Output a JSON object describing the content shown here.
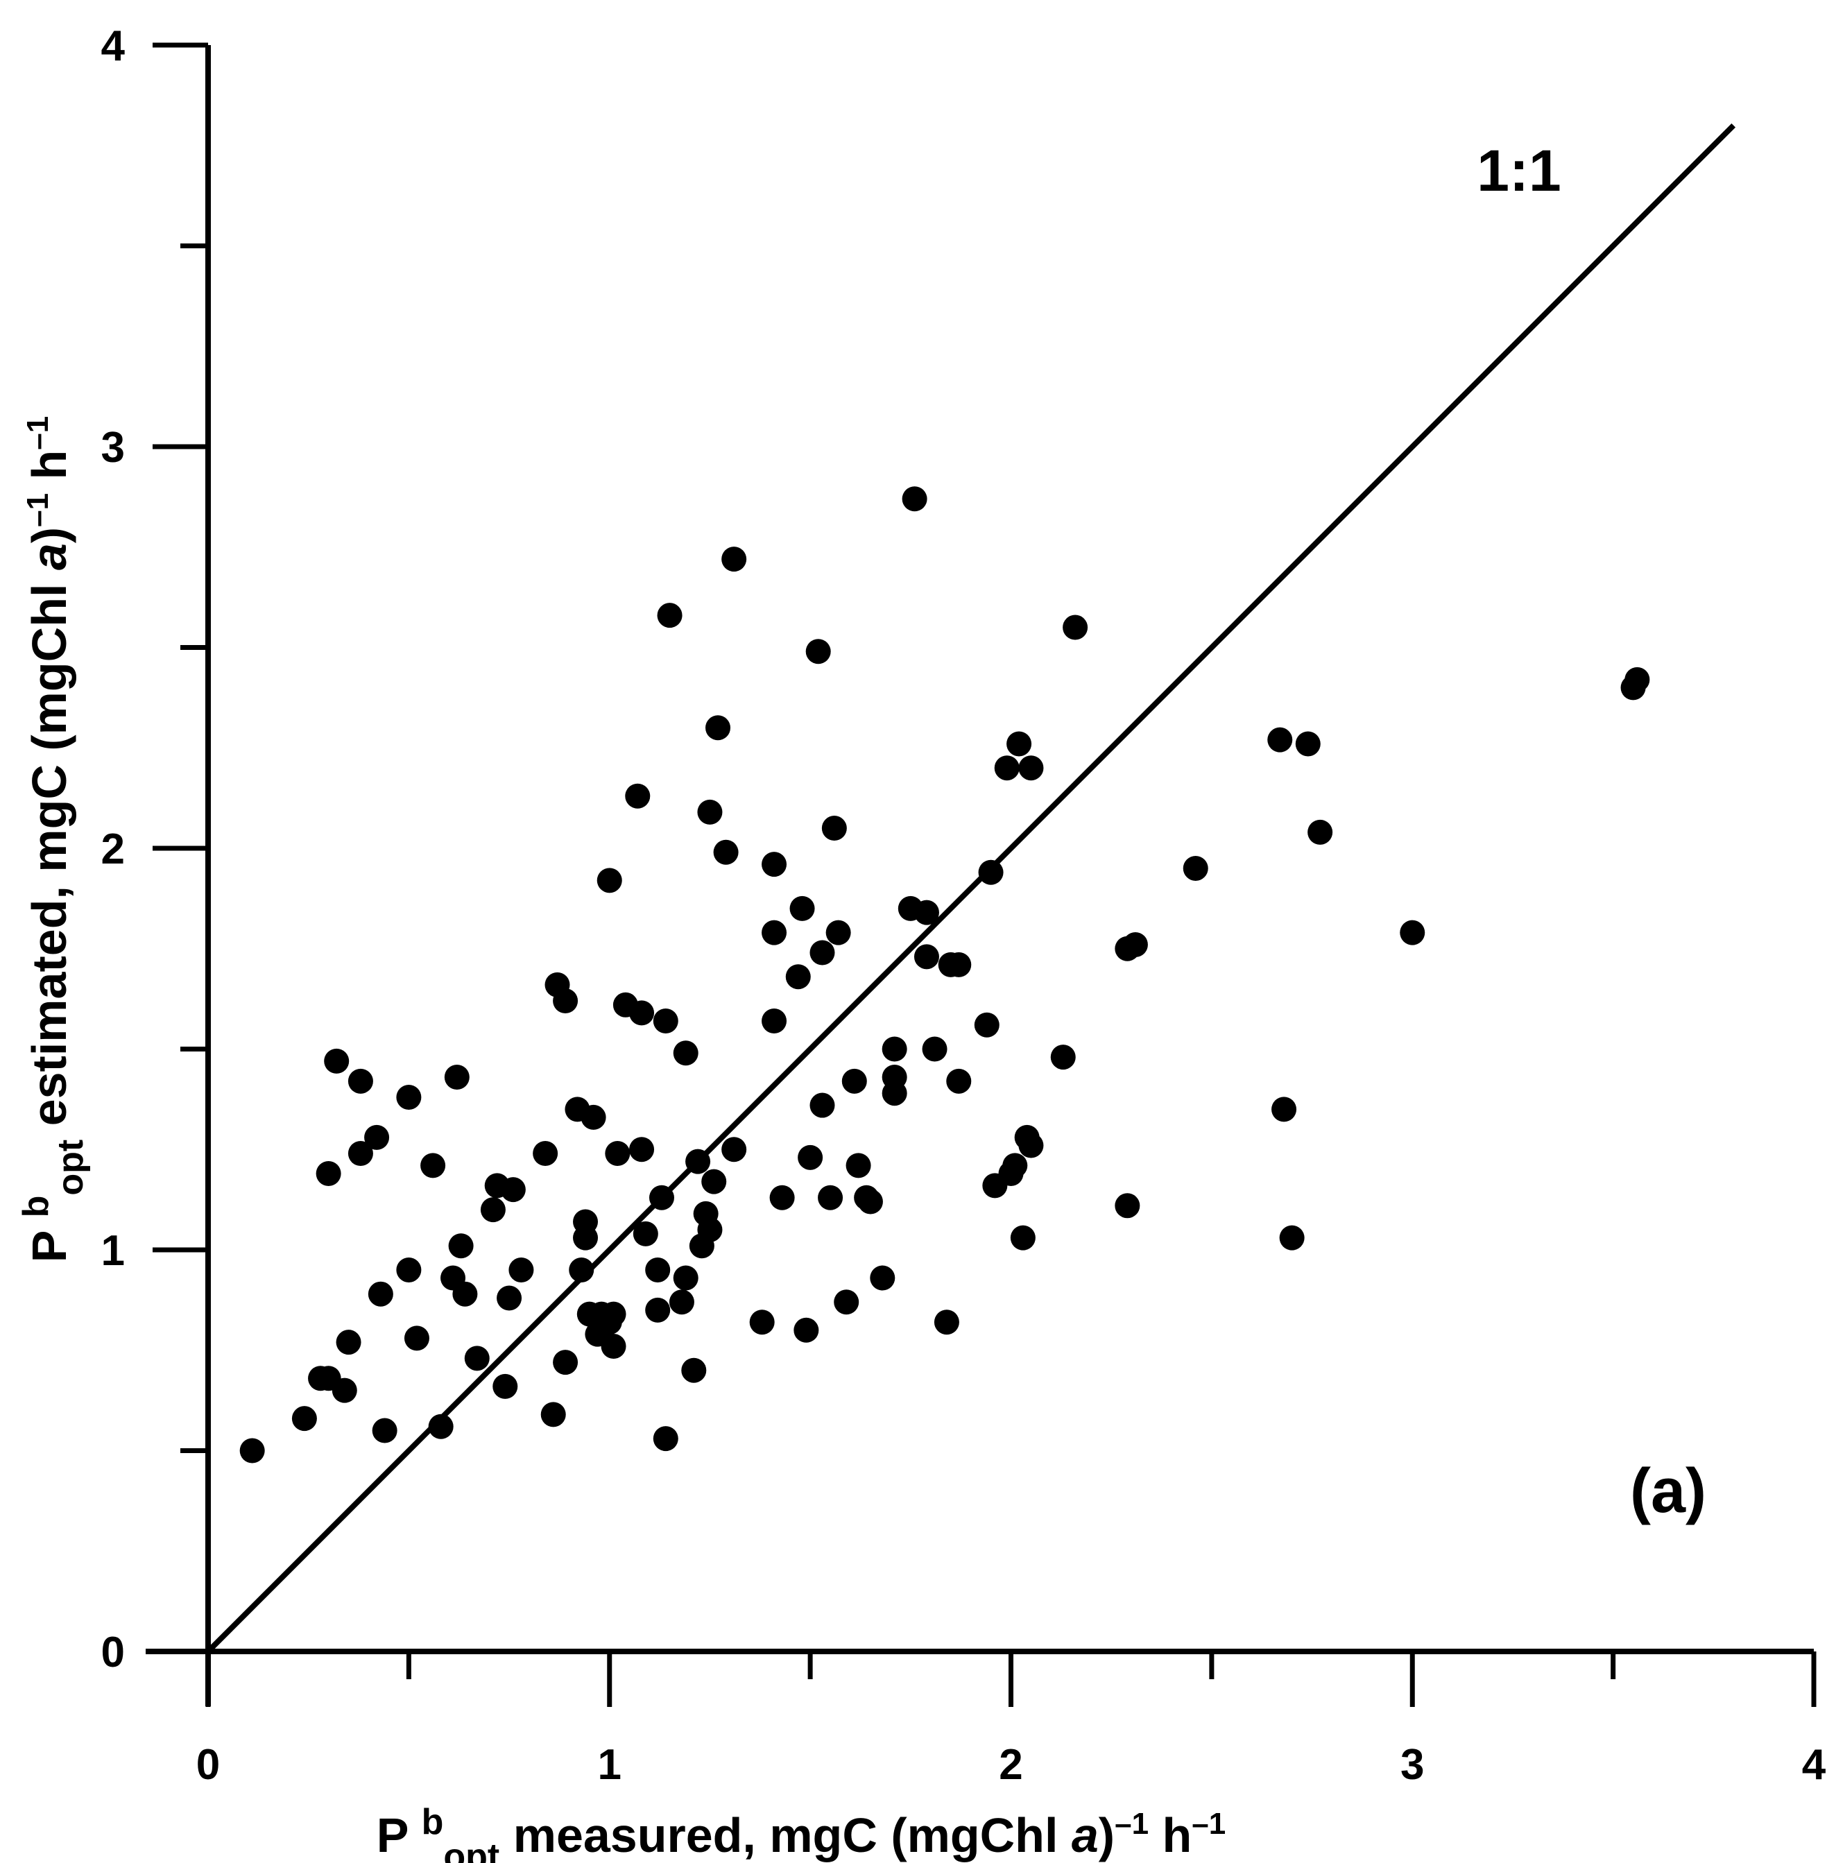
{
  "chart_data": {
    "type": "scatter",
    "title": "",
    "panel_label": "(a)",
    "xlabel": {
      "p": "P ",
      "b": "b",
      "opt": "opt",
      "rest": " measured, mgC (mgChl ",
      "a": "a",
      "close": ")",
      "sup1": "–1",
      "h": " h",
      "sup2": "–1"
    },
    "ylabel": {
      "p": "P ",
      "b": "b",
      "opt": "opt",
      "rest": " estimated, mgC (mgChl ",
      "a": "a",
      "close": ")",
      "sup1": "–1",
      "h": " h",
      "sup2": "–1"
    },
    "xlim": [
      0,
      4
    ],
    "ylim": [
      0,
      4
    ],
    "xticks": [
      "0",
      "1",
      "2",
      "3",
      "4"
    ],
    "yticks": [
      "0",
      "1",
      "2",
      "3",
      "4"
    ],
    "grid": false,
    "reference_line": {
      "label": "1:1",
      "x": [
        0,
        3.8
      ],
      "y": [
        0,
        3.8
      ]
    },
    "series": [
      {
        "name": "P b opt",
        "color": "#000000",
        "points": [
          [
            0.11,
            0.5
          ],
          [
            0.24,
            0.58
          ],
          [
            0.28,
            0.68
          ],
          [
            0.3,
            0.68
          ],
          [
            0.34,
            0.65
          ],
          [
            0.35,
            0.77
          ],
          [
            0.3,
            1.19
          ],
          [
            0.32,
            1.47
          ],
          [
            0.38,
            1.42
          ],
          [
            0.38,
            1.24
          ],
          [
            0.42,
            1.28
          ],
          [
            0.43,
            0.89
          ],
          [
            0.44,
            0.55
          ],
          [
            0.5,
            0.95
          ],
          [
            0.5,
            1.38
          ],
          [
            0.52,
            0.78
          ],
          [
            0.56,
            1.21
          ],
          [
            0.58,
            0.56
          ],
          [
            0.61,
            0.93
          ],
          [
            0.62,
            1.43
          ],
          [
            0.63,
            1.01
          ],
          [
            0.64,
            0.89
          ],
          [
            0.67,
            0.73
          ],
          [
            0.71,
            1.1
          ],
          [
            0.72,
            1.16
          ],
          [
            0.74,
            0.66
          ],
          [
            0.75,
            0.88
          ],
          [
            0.76,
            1.15
          ],
          [
            0.78,
            0.95
          ],
          [
            0.84,
            1.24
          ],
          [
            0.86,
            0.59
          ],
          [
            0.87,
            1.66
          ],
          [
            0.89,
            0.72
          ],
          [
            0.89,
            1.62
          ],
          [
            0.92,
            1.35
          ],
          [
            0.93,
            0.95
          ],
          [
            0.94,
            1.07
          ],
          [
            0.94,
            1.03
          ],
          [
            0.95,
            0.84
          ],
          [
            0.96,
            1.33
          ],
          [
            0.97,
            0.79
          ],
          [
            0.98,
            0.84
          ],
          [
            1.0,
            1.92
          ],
          [
            1.0,
            0.82
          ],
          [
            1.01,
            0.84
          ],
          [
            1.01,
            0.76
          ],
          [
            1.02,
            1.24
          ],
          [
            1.04,
            1.61
          ],
          [
            1.07,
            2.13
          ],
          [
            1.08,
            1.25
          ],
          [
            1.08,
            1.59
          ],
          [
            1.09,
            1.04
          ],
          [
            1.12,
            0.95
          ],
          [
            1.12,
            0.85
          ],
          [
            1.13,
            1.13
          ],
          [
            1.14,
            1.57
          ],
          [
            1.14,
            0.53
          ],
          [
            1.15,
            2.58
          ],
          [
            1.18,
            0.87
          ],
          [
            1.19,
            0.93
          ],
          [
            1.19,
            1.49
          ],
          [
            1.21,
            0.7
          ],
          [
            1.22,
            1.22
          ],
          [
            1.23,
            1.01
          ],
          [
            1.24,
            1.09
          ],
          [
            1.25,
            1.05
          ],
          [
            1.25,
            2.09
          ],
          [
            1.26,
            1.17
          ],
          [
            1.27,
            2.3
          ],
          [
            1.29,
            1.99
          ],
          [
            1.31,
            1.25
          ],
          [
            1.31,
            2.72
          ],
          [
            1.38,
            0.82
          ],
          [
            1.41,
            1.96
          ],
          [
            1.41,
            1.79
          ],
          [
            1.41,
            1.57
          ],
          [
            1.43,
            1.13
          ],
          [
            1.47,
            1.68
          ],
          [
            1.48,
            1.85
          ],
          [
            1.49,
            0.8
          ],
          [
            1.5,
            1.23
          ],
          [
            1.52,
            2.49
          ],
          [
            1.53,
            1.36
          ],
          [
            1.53,
            1.74
          ],
          [
            1.55,
            1.13
          ],
          [
            1.56,
            2.05
          ],
          [
            1.57,
            1.79
          ],
          [
            1.59,
            0.87
          ],
          [
            1.61,
            1.42
          ],
          [
            1.62,
            1.21
          ],
          [
            1.64,
            1.13
          ],
          [
            1.65,
            1.12
          ],
          [
            1.68,
            0.93
          ],
          [
            1.71,
            1.5
          ],
          [
            1.71,
            1.43
          ],
          [
            1.71,
            1.39
          ],
          [
            1.75,
            1.85
          ],
          [
            1.76,
            2.87
          ],
          [
            1.79,
            1.84
          ],
          [
            1.79,
            1.73
          ],
          [
            1.81,
            1.5
          ],
          [
            1.84,
            0.82
          ],
          [
            1.85,
            1.71
          ],
          [
            1.87,
            1.42
          ],
          [
            1.87,
            1.71
          ],
          [
            1.94,
            1.56
          ],
          [
            1.95,
            1.94
          ],
          [
            1.96,
            1.16
          ],
          [
            1.99,
            2.2
          ],
          [
            2.0,
            1.19
          ],
          [
            2.01,
            1.21
          ],
          [
            2.02,
            2.26
          ],
          [
            2.03,
            1.03
          ],
          [
            2.04,
            1.28
          ],
          [
            2.05,
            2.2
          ],
          [
            2.05,
            1.26
          ],
          [
            2.13,
            1.48
          ],
          [
            2.16,
            2.55
          ],
          [
            2.29,
            1.75
          ],
          [
            2.29,
            1.11
          ],
          [
            2.31,
            1.76
          ],
          [
            2.46,
            1.95
          ],
          [
            2.67,
            2.27
          ],
          [
            2.68,
            1.35
          ],
          [
            2.7,
            1.03
          ],
          [
            2.74,
            2.26
          ],
          [
            2.77,
            2.04
          ],
          [
            3.0,
            1.79
          ],
          [
            3.55,
            2.4
          ],
          [
            3.56,
            2.42
          ]
        ]
      }
    ]
  }
}
